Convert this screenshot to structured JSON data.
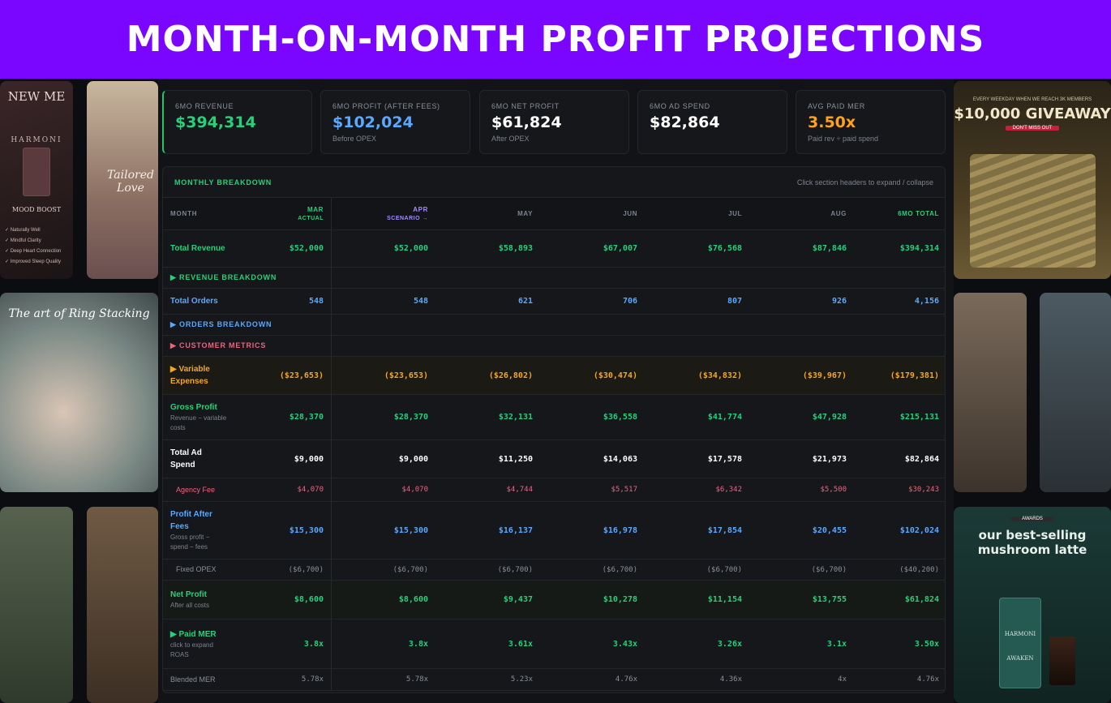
{
  "banner": {
    "title": "MONTH-ON-MONTH PROFIT PROJECTIONS"
  },
  "kpis": [
    {
      "label": "6MO REVENUE",
      "value": "$394,314",
      "sub": "",
      "color": "#27d07a"
    },
    {
      "label": "6MO PROFIT (AFTER FEES)",
      "value": "$102,024",
      "sub": "Before OPEX",
      "color": "#5aa8ff"
    },
    {
      "label": "6MO NET PROFIT",
      "value": "$61,824",
      "sub": "After OPEX",
      "color": "#ffffff"
    },
    {
      "label": "6MO AD SPEND",
      "value": "$82,864",
      "sub": "",
      "color": "#ffffff"
    },
    {
      "label": "AVG PAID MER",
      "value": "3.50x",
      "sub": "Paid rev ÷ paid spend",
      "color": "#ffa21a"
    }
  ],
  "table": {
    "title": "MONTHLY BREAKDOWN",
    "hint": "Click section headers to expand / collapse",
    "month_label": "MONTH",
    "columns": [
      {
        "name": "MAR",
        "sub": "ACTUAL"
      },
      {
        "name": "APR",
        "sub": "SCENARIO →"
      },
      {
        "name": "MAY",
        "sub": ""
      },
      {
        "name": "JUN",
        "sub": ""
      },
      {
        "name": "JUL",
        "sub": ""
      },
      {
        "name": "AUG",
        "sub": ""
      },
      {
        "name": "6MO TOTAL",
        "sub": ""
      }
    ],
    "rows": [
      {
        "kind": "data",
        "label": "Total Revenue",
        "note": "",
        "color": "#27d07a",
        "values": [
          "$52,000",
          "$52,000",
          "$58,893",
          "$67,007",
          "$76,568",
          "$87,846",
          "$394,314"
        ]
      },
      {
        "kind": "section",
        "label": "▶ REVENUE BREAKDOWN",
        "color": "#27d07a"
      },
      {
        "kind": "data",
        "label": "Total Orders",
        "note": "",
        "color": "#5aa8ff",
        "values": [
          "548",
          "548",
          "621",
          "706",
          "807",
          "926",
          "4,156"
        ]
      },
      {
        "kind": "section",
        "label": "▶ ORDERS BREAKDOWN",
        "color": "#5aa8ff"
      },
      {
        "kind": "section",
        "label": "▶ CUSTOMER METRICS",
        "color": "#f0627e"
      },
      {
        "kind": "data",
        "label": "▶ Variable Expenses",
        "note": "",
        "color": "#f5a623",
        "values": [
          "($23,653)",
          "($23,653)",
          "($26,802)",
          "($30,474)",
          "($34,832)",
          "($39,967)",
          "($179,381)"
        ]
      },
      {
        "kind": "data",
        "label": "Gross Profit",
        "note": "Revenue − variable costs",
        "color": "#27d07a",
        "values": [
          "$28,370",
          "$28,370",
          "$32,131",
          "$36,558",
          "$41,774",
          "$47,928",
          "$215,131"
        ]
      },
      {
        "kind": "data",
        "label": "Total Ad Spend",
        "note": "",
        "color": "#ffffff",
        "values": [
          "$9,000",
          "$9,000",
          "$11,250",
          "$14,063",
          "$17,578",
          "$21,973",
          "$82,864"
        ]
      },
      {
        "kind": "data",
        "label": "Agency Fee",
        "note": "",
        "color": "#f0627e",
        "values": [
          "$4,070",
          "$4,070",
          "$4,744",
          "$5,517",
          "$6,342",
          "$5,500",
          "$30,243"
        ]
      },
      {
        "kind": "data",
        "label": "Profit After Fees",
        "note": "Gross profit − spend − fees",
        "color": "#5aa8ff",
        "values": [
          "$15,300",
          "$15,300",
          "$16,137",
          "$16,978",
          "$17,854",
          "$20,455",
          "$102,024"
        ]
      },
      {
        "kind": "data",
        "label": "Fixed OPEX",
        "note": "",
        "color": "#8a9099",
        "values": [
          "($6,700)",
          "($6,700)",
          "($6,700)",
          "($6,700)",
          "($6,700)",
          "($6,700)",
          "($40,200)"
        ]
      },
      {
        "kind": "data",
        "label": "Net Profit",
        "note": "After all costs",
        "color": "#27d07a",
        "values": [
          "$8,600",
          "$8,600",
          "$9,437",
          "$10,278",
          "$11,154",
          "$13,755",
          "$61,824"
        ]
      },
      {
        "kind": "data",
        "label": "▶ Paid MER",
        "note": "click to expand ROAS",
        "color": "#27d07a",
        "values": [
          "3.8x",
          "3.8x",
          "3.61x",
          "3.43x",
          "3.26x",
          "3.1x",
          "3.50x"
        ]
      },
      {
        "kind": "data",
        "label": "Blended MER",
        "note": "",
        "color": "#8a9099",
        "values": [
          "5.78x",
          "5.78x",
          "5.23x",
          "4.76x",
          "4.36x",
          "4x",
          "4.76x"
        ]
      }
    ]
  },
  "side_left": {
    "brand_top": "NEW ME",
    "product_name": "HARMONI",
    "tagline": "MOOD BOOST",
    "bullets": [
      "✓ Naturally Well",
      "✓ Mindful Clarity",
      "✓ Deep Heart Connection",
      "✓ Improved Sleep Quality"
    ],
    "tile2_text": "Tailored Love",
    "tile3_text": "The art of Ring Stacking"
  },
  "side_right": {
    "promo_top": "EVERY WEEKDAY WHEN WE REACH 3K MEMBERS",
    "giveaway": "$10,000 GIVEAWAY",
    "giveaway_badge": "DON'T MISS OUT",
    "tile_text": "our best-selling mushroom latte",
    "tile_badge": "AWARDS",
    "tile_sub": "HARMONI",
    "tile_sub2": "AWAKEN"
  }
}
